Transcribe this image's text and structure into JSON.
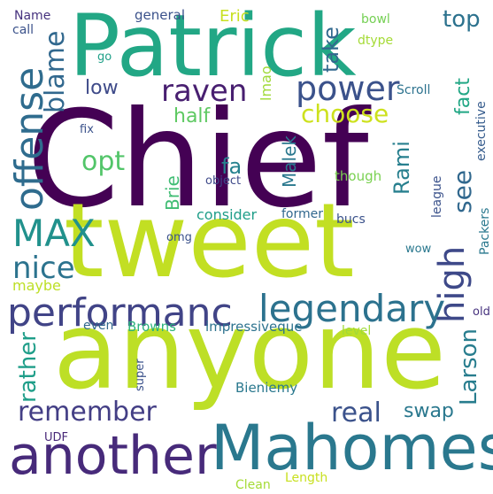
{
  "words": [
    {
      "text": "Chief",
      "color": "#440154"
    },
    {
      "text": "tweet",
      "color": "#c2df23"
    },
    {
      "text": "anyone",
      "color": "#bddf26"
    },
    {
      "text": "Patrick",
      "color": "#22a785"
    },
    {
      "text": "Mahomes",
      "color": "#2a788e"
    },
    {
      "text": "another",
      "color": "#472a7a"
    },
    {
      "text": "performanc",
      "color": "#414487"
    },
    {
      "text": "legendary",
      "color": "#2c728e"
    },
    {
      "text": "offense",
      "color": "#2f6c8e"
    },
    {
      "text": "power",
      "color": "#3b528b"
    },
    {
      "text": "choose",
      "color": "#cde11d"
    },
    {
      "text": "raven",
      "color": "#481f70"
    },
    {
      "text": "MAX",
      "color": "#21918c"
    },
    {
      "text": "nice",
      "color": "#2c738e"
    },
    {
      "text": "high",
      "color": "#3e4989"
    },
    {
      "text": "remember",
      "color": "#433e85"
    },
    {
      "text": "real",
      "color": "#3b528b"
    },
    {
      "text": "Larson",
      "color": "#287d8e"
    },
    {
      "text": "rather",
      "color": "#1f9e89"
    },
    {
      "text": "blame",
      "color": "#31688e"
    },
    {
      "text": "opt",
      "color": "#52c569"
    },
    {
      "text": "half",
      "color": "#5ec962"
    },
    {
      "text": "low",
      "color": "#3e4a89"
    },
    {
      "text": "see",
      "color": "#31688e"
    },
    {
      "text": "fact",
      "color": "#22a785"
    },
    {
      "text": "top",
      "color": "#2c728e"
    },
    {
      "text": "take",
      "color": "#31688e"
    },
    {
      "text": "swap",
      "color": "#2a788e"
    },
    {
      "text": "Rami",
      "color": "#277f8e"
    },
    {
      "text": "Malek",
      "color": "#2a788e"
    },
    {
      "text": "Brie",
      "color": "#3fbc73"
    },
    {
      "text": "fa",
      "color": "#26828e"
    },
    {
      "text": "lmao",
      "color": "#a0da39"
    },
    {
      "text": "Eric",
      "color": "#c8e020"
    },
    {
      "text": "general",
      "color": "#3b528b"
    },
    {
      "text": "Name",
      "color": "#46327e"
    },
    {
      "text": "call",
      "color": "#3b528b"
    },
    {
      "text": "go",
      "color": "#1fa088"
    },
    {
      "text": "bowl",
      "color": "#75d054"
    },
    {
      "text": "dtype",
      "color": "#a5db36"
    },
    {
      "text": "Scroll",
      "color": "#2c728e"
    },
    {
      "text": "executive",
      "color": "#365c8d"
    },
    {
      "text": "fix",
      "color": "#3b528b"
    },
    {
      "text": "object",
      "color": "#3e4989"
    },
    {
      "text": "though",
      "color": "#7ad151"
    },
    {
      "text": "consider",
      "color": "#1f9e89"
    },
    {
      "text": "former",
      "color": "#31688e"
    },
    {
      "text": "bucs",
      "color": "#3b528b"
    },
    {
      "text": "league",
      "color": "#3b528b"
    },
    {
      "text": "Packers",
      "color": "#2a788e"
    },
    {
      "text": "omg",
      "color": "#3b528b"
    },
    {
      "text": "wow",
      "color": "#2a788e"
    },
    {
      "text": "maybe",
      "color": "#bddf26"
    },
    {
      "text": "old",
      "color": "#46327e"
    },
    {
      "text": "even",
      "color": "#31688e"
    },
    {
      "text": "Browns",
      "color": "#2db27d"
    },
    {
      "text": "impressiveque",
      "color": "#2c728e"
    },
    {
      "text": "level",
      "color": "#a0da39"
    },
    {
      "text": "super",
      "color": "#3b528b"
    },
    {
      "text": "Bieniemy",
      "color": "#2a788e"
    },
    {
      "text": "UDF",
      "color": "#482878"
    },
    {
      "text": "Clean",
      "color": "#a5db36"
    },
    {
      "text": "Length",
      "color": "#c8e020"
    }
  ]
}
